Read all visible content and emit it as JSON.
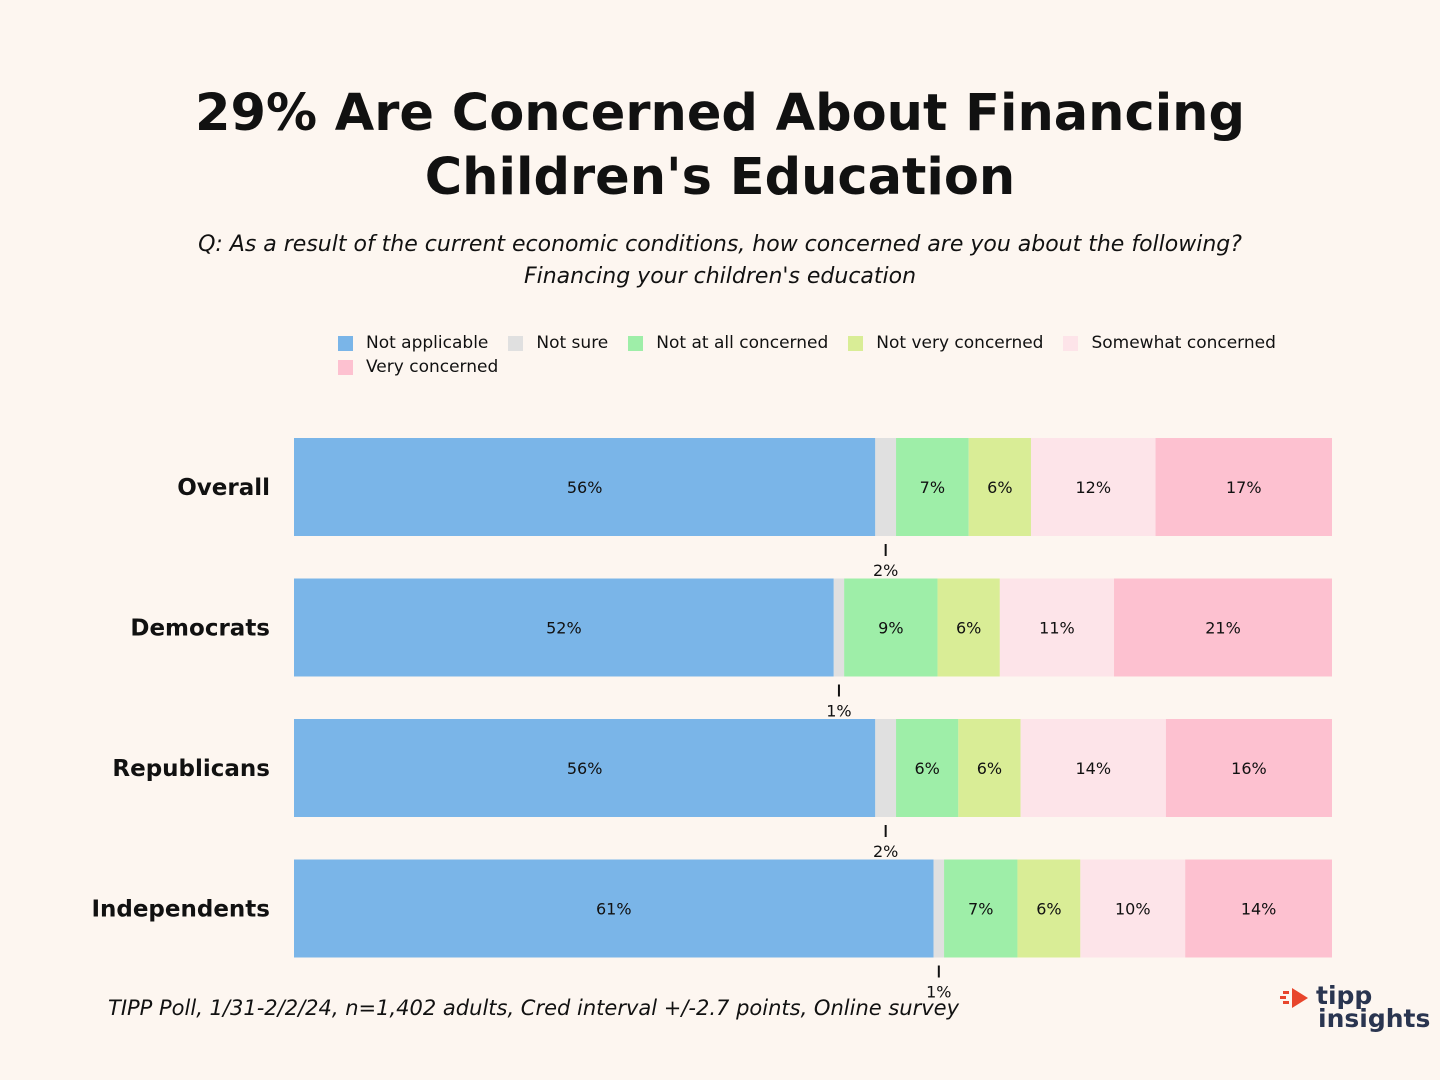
{
  "title": "29% Are Concerned About Financing Children's Education",
  "subtitle_line1": "Q: As a result of the current economic conditions, how concerned are you about the following?",
  "subtitle_line2": "Financing your children's education",
  "footer": "TIPP Poll, 1/31-2/2/24, n=1,402 adults, Cred interval +/-2.7 points, Online survey",
  "logo": {
    "line1": "tipp",
    "line2": "insights"
  },
  "colors": {
    "background": "#fdf6f0",
    "not_applicable": "#7ab5e8",
    "not_sure": "#e0e0e0",
    "not_at_all": "#9eeea8",
    "not_very": "#d9ed96",
    "somewhat": "#fde4e9",
    "very": "#fdc1d0",
    "logo_red": "#e8452c"
  },
  "legend": [
    {
      "label": "Not applicable",
      "color": "#7ab5e8"
    },
    {
      "label": "Not sure",
      "color": "#e0e0e0"
    },
    {
      "label": "Not at all concerned",
      "color": "#9eeea8"
    },
    {
      "label": "Not very concerned",
      "color": "#d9ed96"
    },
    {
      "label": "Somewhat concerned",
      "color": "#fde4e9"
    },
    {
      "label": "Very concerned",
      "color": "#fdc1d0"
    }
  ],
  "chart_data": {
    "type": "bar",
    "orientation": "horizontal",
    "stacked": true,
    "normalized": true,
    "categories": [
      "Overall",
      "Democrats",
      "Republicans",
      "Independents"
    ],
    "series": [
      {
        "name": "Not applicable",
        "values": [
          56,
          52,
          56,
          61
        ]
      },
      {
        "name": "Not sure",
        "values": [
          2,
          1,
          2,
          1
        ]
      },
      {
        "name": "Not at all concerned",
        "values": [
          7,
          9,
          6,
          7
        ]
      },
      {
        "name": "Not very concerned",
        "values": [
          6,
          6,
          6,
          6
        ]
      },
      {
        "name": "Somewhat concerned",
        "values": [
          12,
          11,
          14,
          10
        ]
      },
      {
        "name": "Very concerned",
        "values": [
          17,
          21,
          16,
          14
        ]
      }
    ],
    "data_label_suffix": "%",
    "legend_position": "top",
    "grid": false
  }
}
